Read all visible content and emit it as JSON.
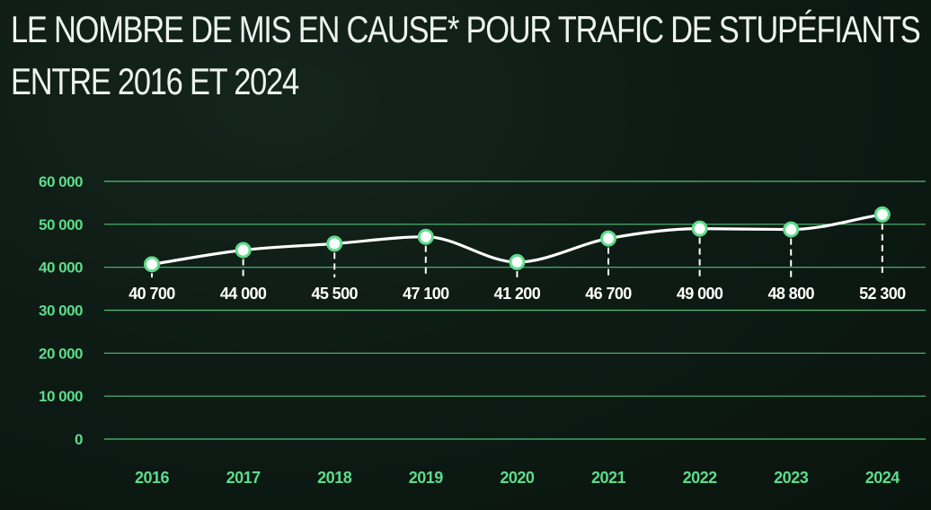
{
  "chart_data": {
    "type": "line",
    "title_lines": [
      "LE NOMBRE DE MIS EN CAUSE* POUR TRAFIC DE STUPÉFIANTS",
      "ENTRE 2016 ET 2024"
    ],
    "categories": [
      "2016",
      "2017",
      "2018",
      "2019",
      "2020",
      "2021",
      "2022",
      "2023",
      "2024"
    ],
    "series": [
      {
        "values": [
          40700,
          44000,
          45500,
          47100,
          41200,
          46700,
          49000,
          48800,
          52300
        ],
        "labels": [
          "40 700",
          "44 000",
          "45 500",
          "47 100",
          "41 200",
          "46 700",
          "49 000",
          "48 800",
          "52 300"
        ]
      }
    ],
    "yticks": [
      0,
      10000,
      20000,
      30000,
      40000,
      50000,
      60000
    ],
    "ytick_labels": [
      "0",
      "10 000",
      "20 000",
      "30 000",
      "40 000",
      "50 000",
      "60 000"
    ],
    "ylim": [
      0,
      60000
    ],
    "grid": true,
    "colors": {
      "background": "#0e1b15",
      "grid": "#5ddc8a",
      "axis_text": "#5ddc8a",
      "line": "#ffffff",
      "marker_fill": "#ffffff",
      "marker_stroke": "#5ddc8a",
      "title": "#eef3ef"
    }
  }
}
